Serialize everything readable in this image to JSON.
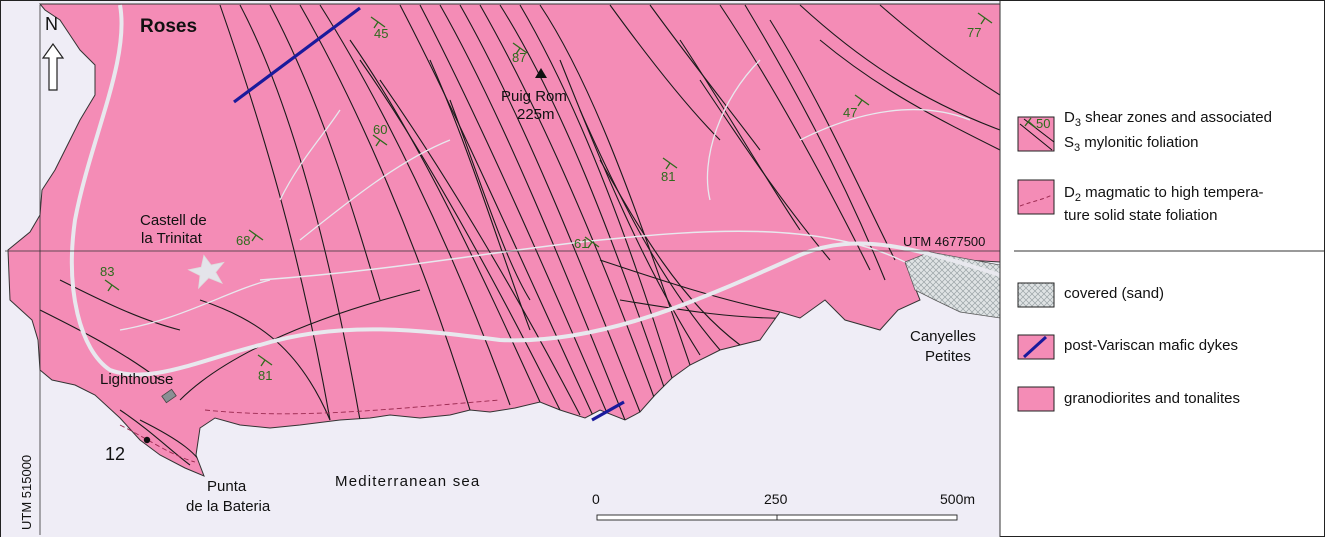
{
  "map": {
    "north_label": "N",
    "town_label": "Roses",
    "peak_label": "Puig Rom",
    "peak_elevation": "225m",
    "castle_label_line1": "Castell de",
    "castle_label_line2": "la Trinitat",
    "lighthouse_label": "Lighthouse",
    "site_label": "12",
    "point_label_line1": "Punta",
    "point_label_line2": "de la Bateria",
    "sea_label": "Mediterranean sea",
    "beach_label_line1": "Canyelles",
    "beach_label_line2": "Petites",
    "utm_northing": "UTM 4677500",
    "utm_easting": "UTM 515000",
    "dips": [
      "45",
      "87",
      "77",
      "60",
      "47",
      "81",
      "68",
      "61",
      "83",
      "81"
    ],
    "colors": {
      "granodiorite": "#f48cb6",
      "sea": "#efedf6",
      "dyke": "#1a1a9c",
      "road": "#e4e4ea",
      "dip_symbol": "#2f6b1d"
    }
  },
  "scale_bar": {
    "ticks": [
      "0",
      "250",
      "500m"
    ]
  },
  "legend": {
    "items": [
      {
        "label_line1_main": "D",
        "label_line1_sub": "3",
        "label_line1_rest": " shear zones and associated",
        "label_line2_main": "S",
        "label_line2_sub": "3",
        "label_line2_rest": " mylonitic foliation",
        "sample_dip": "50"
      },
      {
        "label_line1_main": "D",
        "label_line1_sub": "2",
        "label_line1_rest": " magmatic to high tempera-",
        "label_line2_main": "ture solid state foliation"
      },
      {
        "label": "covered (sand)"
      },
      {
        "label": "post-Variscan mafic dykes"
      },
      {
        "label": "granodiorites and tonalites"
      }
    ]
  }
}
